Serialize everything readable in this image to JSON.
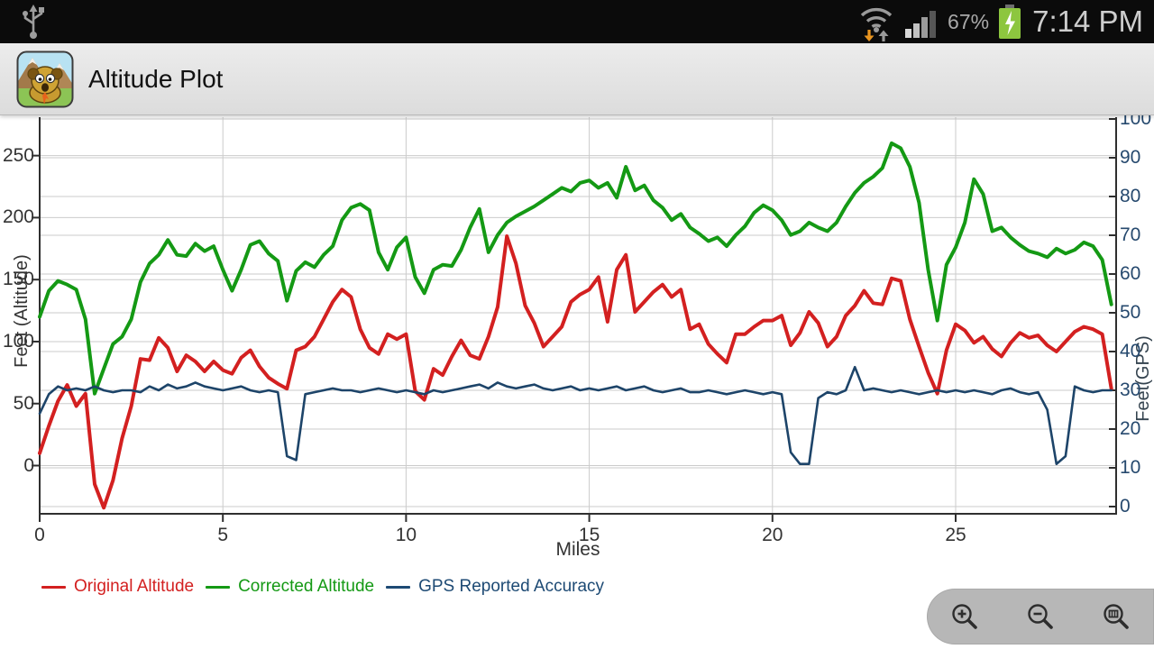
{
  "status_bar": {
    "time": "7:14 PM",
    "battery_percent": "67%",
    "icons": [
      "usb-icon",
      "wifi-activity-icon",
      "signal-strength-icon",
      "battery-charging-icon"
    ]
  },
  "app_bar": {
    "title": "Altitude Plot",
    "icon": "dog-mountains-app-icon"
  },
  "chart": {
    "x_axis": {
      "title": "Miles",
      "ticks": [
        0,
        5,
        10,
        15,
        20,
        25
      ]
    },
    "left_axis": {
      "title": "Feet (Altitude)",
      "ticks": [
        0,
        50,
        100,
        150,
        200,
        250
      ]
    },
    "right_axis": {
      "title": "Feet(GPS)",
      "ticks": [
        0,
        10,
        20,
        30,
        40,
        50,
        60,
        70,
        80,
        90,
        100
      ]
    },
    "colors": {
      "grid": "#cbcbcb",
      "axis": "#2f2f2f",
      "right_tick_text": "#26496e"
    },
    "legend": [
      {
        "label": "Original Altitude",
        "color": "#d32020"
      },
      {
        "label": "Corrected Altitude",
        "color": "#149914"
      },
      {
        "label": "GPS Reported Accuracy",
        "color": "#1d4a74"
      }
    ]
  },
  "chart_data": {
    "type": "line",
    "title": "",
    "xlabel": "Miles",
    "x_start": 0,
    "x_step": 0.25,
    "x_range": [
      0,
      29.4
    ],
    "left_ylabel": "Feet (Altitude)",
    "left_ylim": [
      -39,
      281
    ],
    "right_ylabel": "Feet(GPS)",
    "right_ylim": [
      0,
      100
    ],
    "grid": true,
    "legend_position": "bottom-left",
    "series": [
      {
        "name": "Original Altitude",
        "axis": "left",
        "color": "#d32020",
        "values": [
          10,
          32,
          52,
          65,
          48,
          58,
          -15,
          -34,
          -12,
          22,
          48,
          86,
          85,
          103,
          95,
          76,
          89,
          84,
          76,
          84,
          77,
          74,
          87,
          93,
          80,
          71,
          66,
          62,
          93,
          96,
          104,
          118,
          132,
          142,
          136,
          110,
          95,
          90,
          106,
          102,
          106,
          60,
          53,
          78,
          73,
          88,
          101,
          89,
          86,
          104,
          128,
          185,
          163,
          129,
          115,
          96,
          104,
          112,
          132,
          138,
          142,
          152,
          116,
          158,
          170,
          124,
          132,
          140,
          146,
          136,
          142,
          110,
          114,
          98,
          90,
          83,
          106,
          106,
          112,
          117,
          117,
          121,
          97,
          107,
          124,
          115,
          96,
          104,
          121,
          129,
          141,
          131,
          130,
          151,
          149,
          118,
          96,
          75,
          58,
          93,
          114,
          109,
          99,
          104,
          94,
          88,
          99,
          107,
          103,
          105,
          97,
          92,
          100,
          108,
          112,
          110,
          106,
          62
        ]
      },
      {
        "name": "Corrected Altitude",
        "axis": "left",
        "color": "#149914",
        "values": [
          120,
          141,
          149,
          146,
          142,
          118,
          58,
          78,
          98,
          104,
          118,
          148,
          163,
          170,
          182,
          170,
          169,
          179,
          173,
          177,
          158,
          141,
          158,
          178,
          181,
          171,
          165,
          133,
          157,
          164,
          160,
          170,
          177,
          198,
          208,
          211,
          206,
          172,
          158,
          176,
          184,
          152,
          139,
          158,
          162,
          161,
          174,
          192,
          207,
          172,
          186,
          196,
          201,
          205,
          209,
          214,
          219,
          224,
          221,
          228,
          230,
          224,
          228,
          216,
          241,
          222,
          226,
          214,
          208,
          198,
          203,
          192,
          187,
          181,
          184,
          177,
          186,
          193,
          204,
          210,
          206,
          198,
          186,
          189,
          196,
          192,
          189,
          196,
          209,
          220,
          228,
          233,
          240,
          260,
          256,
          241,
          212,
          158,
          117,
          162,
          176,
          196,
          231,
          219,
          189,
          192,
          184,
          178,
          173,
          171,
          168,
          175,
          171,
          174,
          180,
          177,
          166,
          130
        ]
      },
      {
        "name": "GPS Reported Accuracy",
        "axis": "right",
        "color": "#1d4469",
        "values": [
          24,
          29,
          31,
          30,
          30.5,
          30,
          31,
          30,
          29.5,
          30,
          30,
          29.5,
          31,
          30,
          31.5,
          30.5,
          31,
          32,
          31,
          30.5,
          30,
          30.5,
          31,
          30,
          29.5,
          30,
          29.5,
          13,
          12,
          29,
          29.5,
          30,
          30.5,
          30,
          30,
          29.5,
          30,
          30.5,
          30,
          29.5,
          30,
          29.5,
          29,
          30,
          29.5,
          30,
          30.5,
          31,
          31.5,
          30.5,
          32,
          31,
          30.5,
          31,
          31.5,
          30.5,
          30,
          30.5,
          31,
          30,
          30.5,
          30,
          30.5,
          31,
          30,
          30.5,
          31,
          30,
          29.5,
          30,
          30.5,
          29.5,
          29.5,
          30,
          29.5,
          29,
          29.5,
          30,
          29.5,
          29,
          29.5,
          29,
          14,
          11,
          11,
          28,
          29.5,
          29,
          30,
          36,
          30,
          30.5,
          30,
          29.5,
          30,
          29.5,
          29,
          29.5,
          30,
          29.5,
          30,
          29.5,
          30,
          29.5,
          29,
          30,
          30.5,
          29.5,
          29,
          29.5,
          25,
          11,
          13,
          31,
          30,
          29.5,
          30,
          30
        ]
      }
    ]
  },
  "zoom_controls": {
    "buttons": [
      {
        "name": "zoom-in",
        "icon": "magnifier-plus-icon"
      },
      {
        "name": "zoom-out",
        "icon": "magnifier-minus-icon"
      },
      {
        "name": "zoom-fit",
        "icon": "magnifier-fit-icon"
      }
    ]
  }
}
